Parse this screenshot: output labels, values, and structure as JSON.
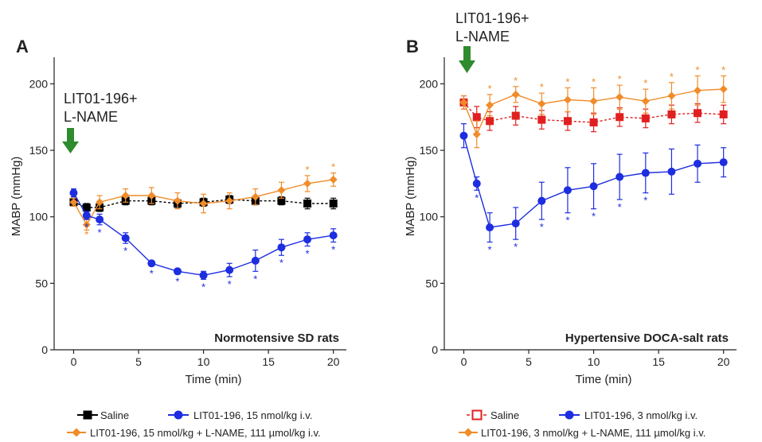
{
  "figure": {
    "legend": {
      "saline": "Saline",
      "lit_a": "LIT01-196,  15 nmol/kg  i.v.",
      "lname_a": "LIT01-196,  15 nmol/kg + L-NAME, 111 µmol/kg i.v.",
      "lit_b": "LIT01-196,  3 nmol/kg  i.v.",
      "lname_b": "LIT01-196,  3 nmol/kg + L-NAME, 111 µmol/kg i.v."
    }
  },
  "chart_data": [
    {
      "type": "line",
      "panel_label": "A",
      "annotation": "Normotensive  SD rats",
      "arrow_label": [
        "LIT01-196+",
        "L-NAME"
      ],
      "xlabel": "Time (min)",
      "ylabel": "MABP (mmHg)",
      "xlim": [
        -1.5,
        21
      ],
      "ylim": [
        0,
        220
      ],
      "xticks": [
        0,
        5,
        10,
        15,
        20
      ],
      "yticks": [
        0,
        50,
        100,
        150,
        200
      ],
      "series": [
        {
          "key": "saline",
          "color": "#000000",
          "marker": "square-filled",
          "dash": true,
          "points": [
            [
              0,
              111
            ],
            [
              1,
              107
            ],
            [
              2,
              107
            ],
            [
              4,
              112
            ],
            [
              6,
              112
            ],
            [
              8,
              110
            ],
            [
              10,
              111
            ],
            [
              12,
              113
            ],
            [
              14,
              112
            ],
            [
              16,
              112
            ],
            [
              18,
              110
            ],
            [
              20,
              110
            ]
          ],
          "err": [
            3,
            3,
            3,
            3,
            3,
            3,
            3,
            3,
            3,
            3,
            4,
            4
          ]
        },
        {
          "key": "lname",
          "color": "#f08c2a",
          "marker": "diamond",
          "dash": false,
          "points": [
            [
              0,
              111
            ],
            [
              1,
              94
            ],
            [
              2,
              111
            ],
            [
              4,
              116
            ],
            [
              6,
              116
            ],
            [
              8,
              112
            ],
            [
              10,
              110
            ],
            [
              12,
              112
            ],
            [
              14,
              115
            ],
            [
              16,
              120
            ],
            [
              18,
              125
            ],
            [
              20,
              128
            ]
          ],
          "err": [
            3,
            4,
            5,
            5,
            6,
            6,
            7,
            6,
            6,
            6,
            6,
            5
          ],
          "stars": [
            1,
            18,
            20
          ]
        },
        {
          "key": "lit",
          "color": "#1d2de0",
          "marker": "circle",
          "dash": false,
          "points": [
            [
              0,
              118
            ],
            [
              1,
              101
            ],
            [
              2,
              98
            ],
            [
              4,
              84
            ],
            [
              6,
              65
            ],
            [
              8,
              59
            ],
            [
              10,
              56
            ],
            [
              12,
              60
            ],
            [
              14,
              67
            ],
            [
              16,
              77
            ],
            [
              18,
              83
            ],
            [
              20,
              86
            ]
          ],
          "err": [
            3,
            3,
            4,
            4,
            2,
            2,
            3,
            5,
            8,
            6,
            5,
            5
          ],
          "stars": [
            1,
            2,
            4,
            6,
            8,
            10,
            12,
            14,
            16,
            18,
            20
          ]
        }
      ]
    },
    {
      "type": "line",
      "panel_label": "B",
      "annotation": "Hypertensive DOCA-salt rats",
      "arrow_label": [
        "LIT01-196+",
        "L-NAME"
      ],
      "xlabel": "Time (min)",
      "ylabel": "MABP (mmHg)",
      "xlim": [
        -1.5,
        21
      ],
      "ylim": [
        0,
        220
      ],
      "xticks": [
        0,
        5,
        10,
        15,
        20
      ],
      "yticks": [
        0,
        50,
        100,
        150,
        200
      ],
      "series": [
        {
          "key": "saline",
          "color": "#e02020",
          "marker": "square-filled",
          "dash": true,
          "points": [
            [
              0,
              186
            ],
            [
              1,
              175
            ],
            [
              2,
              172
            ],
            [
              4,
              176
            ],
            [
              6,
              173
            ],
            [
              8,
              172
            ],
            [
              10,
              171
            ],
            [
              12,
              175
            ],
            [
              14,
              174
            ],
            [
              16,
              177
            ],
            [
              18,
              178
            ],
            [
              20,
              177
            ]
          ],
          "err": [
            5,
            8,
            7,
            7,
            7,
            7,
            7,
            7,
            7,
            7,
            7,
            7
          ]
        },
        {
          "key": "lname",
          "color": "#f08c2a",
          "marker": "diamond",
          "dash": false,
          "points": [
            [
              0,
              186
            ],
            [
              1,
              162
            ],
            [
              2,
              184
            ],
            [
              4,
              192
            ],
            [
              6,
              185
            ],
            [
              8,
              188
            ],
            [
              10,
              187
            ],
            [
              12,
              190
            ],
            [
              14,
              187
            ],
            [
              16,
              191
            ],
            [
              18,
              195
            ],
            [
              20,
              196
            ]
          ],
          "err": [
            5,
            10,
            8,
            6,
            8,
            9,
            10,
            9,
            9,
            10,
            11,
            10
          ],
          "stars": [
            2,
            4,
            6,
            8,
            10,
            12,
            14,
            16,
            18,
            20
          ]
        },
        {
          "key": "lit",
          "color": "#1d2de0",
          "marker": "circle",
          "dash": false,
          "points": [
            [
              0,
              161
            ],
            [
              1,
              125
            ],
            [
              2,
              92
            ],
            [
              4,
              95
            ],
            [
              6,
              112
            ],
            [
              8,
              120
            ],
            [
              10,
              123
            ],
            [
              12,
              130
            ],
            [
              14,
              133
            ],
            [
              16,
              134
            ],
            [
              18,
              140
            ],
            [
              20,
              141
            ]
          ],
          "err": [
            9,
            5,
            11,
            12,
            14,
            17,
            17,
            17,
            15,
            17,
            14,
            11
          ],
          "stars": [
            1,
            2,
            4,
            6,
            8,
            10,
            12,
            14
          ]
        }
      ]
    }
  ]
}
